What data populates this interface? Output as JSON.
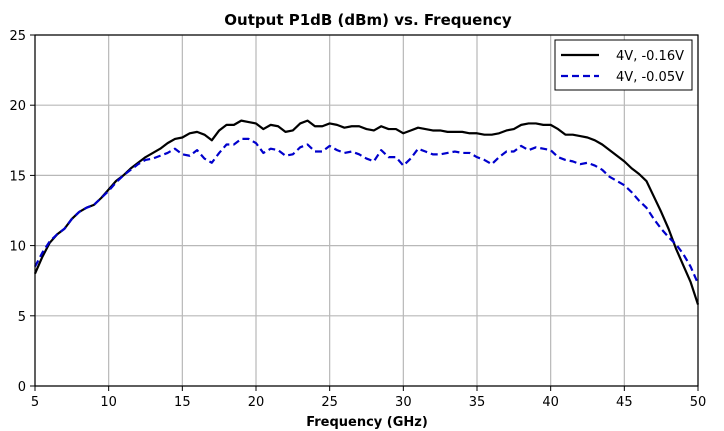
{
  "chart_data": {
    "type": "line",
    "title": "Output P1dB (dBm) vs. Frequency",
    "xlabel": "Frequency (GHz)",
    "ylabel": "",
    "xlim": [
      5,
      50
    ],
    "ylim": [
      0,
      25
    ],
    "xticks": [
      5,
      10,
      15,
      20,
      25,
      30,
      35,
      40,
      45,
      50
    ],
    "yticks": [
      0,
      5,
      10,
      15,
      20,
      25
    ],
    "xtick_labels": [
      "5",
      "10",
      "15",
      "20",
      "25",
      "30",
      "35",
      "40",
      "45",
      "50"
    ],
    "ytick_labels": [
      "0",
      "5",
      "10",
      "15",
      "20",
      "25"
    ],
    "grid": true,
    "legend_position": "top-right",
    "series": [
      {
        "name": "4V, -0.16V",
        "color": "#000000",
        "dash": "solid",
        "x": [
          5,
          5.5,
          6,
          6.5,
          7,
          7.5,
          8,
          8.5,
          9,
          9.5,
          10,
          10.5,
          11,
          11.5,
          12,
          12.5,
          13,
          13.5,
          14,
          14.5,
          15,
          15.5,
          16,
          16.5,
          17,
          17.5,
          18,
          18.5,
          19,
          19.5,
          20,
          20.5,
          21,
          21.5,
          22,
          22.5,
          23,
          23.5,
          24,
          24.5,
          25,
          25.5,
          26,
          26.5,
          27,
          27.5,
          28,
          28.5,
          29,
          29.5,
          30,
          30.5,
          31,
          31.5,
          32,
          32.5,
          33,
          33.5,
          34,
          34.5,
          35,
          35.5,
          36,
          36.5,
          37,
          37.5,
          38,
          38.5,
          39,
          39.5,
          40,
          40.5,
          41,
          41.5,
          42,
          42.5,
          43,
          43.5,
          44,
          44.5,
          45,
          45.5,
          46,
          46.5,
          47,
          47.5,
          48,
          48.5,
          49,
          49.5,
          50
        ],
        "values": [
          8.0,
          9.2,
          10.2,
          10.8,
          11.2,
          11.9,
          12.4,
          12.7,
          12.9,
          13.4,
          14.0,
          14.6,
          15.0,
          15.5,
          15.9,
          16.3,
          16.6,
          16.9,
          17.3,
          17.6,
          17.7,
          18.0,
          18.1,
          17.9,
          17.5,
          18.2,
          18.6,
          18.6,
          18.9,
          18.8,
          18.7,
          18.3,
          18.6,
          18.5,
          18.1,
          18.2,
          18.7,
          18.9,
          18.5,
          18.5,
          18.7,
          18.6,
          18.4,
          18.5,
          18.5,
          18.3,
          18.2,
          18.5,
          18.3,
          18.3,
          18.0,
          18.2,
          18.4,
          18.3,
          18.2,
          18.2,
          18.1,
          18.1,
          18.1,
          18.0,
          18.0,
          17.9,
          17.9,
          18.0,
          18.2,
          18.3,
          18.6,
          18.7,
          18.7,
          18.6,
          18.6,
          18.3,
          17.9,
          17.9,
          17.8,
          17.7,
          17.5,
          17.2,
          16.8,
          16.4,
          16.0,
          15.5,
          15.1,
          14.6,
          13.5,
          12.4,
          11.2,
          9.8,
          8.6,
          7.4,
          5.8
        ],
        "label_color": "#000000"
      },
      {
        "name": "4V, -0.05V",
        "color": "#0000cc",
        "dash": "dashed",
        "x": [
          5,
          5.5,
          6,
          6.5,
          7,
          7.5,
          8,
          8.5,
          9,
          9.5,
          10,
          10.5,
          11,
          11.5,
          12,
          12.5,
          13,
          13.5,
          14,
          14.5,
          15,
          15.5,
          16,
          16.5,
          17,
          17.5,
          18,
          18.5,
          19,
          19.5,
          20,
          20.5,
          21,
          21.5,
          22,
          22.5,
          23,
          23.5,
          24,
          24.5,
          25,
          25.5,
          26,
          26.5,
          27,
          27.5,
          28,
          28.5,
          29,
          29.5,
          30,
          30.5,
          31,
          31.5,
          32,
          32.5,
          33,
          33.5,
          34,
          34.5,
          35,
          35.5,
          36,
          36.5,
          37,
          37.5,
          38,
          38.5,
          39,
          39.5,
          40,
          40.5,
          41,
          41.5,
          42,
          42.5,
          43,
          43.5,
          44,
          44.5,
          45,
          45.5,
          46,
          46.5,
          47,
          47.5,
          48,
          48.5,
          49,
          49.5,
          50
        ],
        "values": [
          8.5,
          9.5,
          10.3,
          10.8,
          11.2,
          11.9,
          12.4,
          12.7,
          12.9,
          13.4,
          13.9,
          14.5,
          15.0,
          15.4,
          15.8,
          16.1,
          16.2,
          16.4,
          16.6,
          16.9,
          16.5,
          16.4,
          16.8,
          16.2,
          15.9,
          16.6,
          17.2,
          17.2,
          17.6,
          17.6,
          17.3,
          16.6,
          16.9,
          16.8,
          16.4,
          16.5,
          17.0,
          17.2,
          16.7,
          16.7,
          17.1,
          16.8,
          16.6,
          16.7,
          16.5,
          16.2,
          16.0,
          16.8,
          16.3,
          16.3,
          15.7,
          16.2,
          16.9,
          16.7,
          16.5,
          16.5,
          16.6,
          16.7,
          16.6,
          16.6,
          16.3,
          16.1,
          15.8,
          16.3,
          16.7,
          16.7,
          17.1,
          16.8,
          17.0,
          16.9,
          16.8,
          16.3,
          16.1,
          16.0,
          15.8,
          15.9,
          15.7,
          15.4,
          14.9,
          14.6,
          14.3,
          13.8,
          13.2,
          12.7,
          11.9,
          11.2,
          10.6,
          10.1,
          9.4,
          8.5,
          7.3
        ]
      }
    ]
  }
}
